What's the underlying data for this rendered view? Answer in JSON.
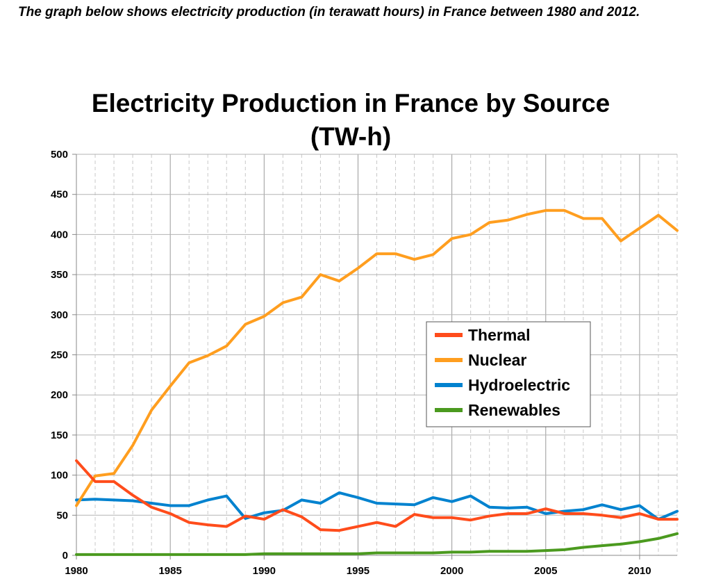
{
  "intro": "The graph below shows electricity production (in terawatt hours) in France between 1980 and 2012.",
  "chart_data": {
    "type": "line",
    "title": "Electricity Production in France by Source",
    "subtitle": "(TW-h)",
    "x": [
      1980,
      1981,
      1982,
      1983,
      1984,
      1985,
      1986,
      1987,
      1988,
      1989,
      1990,
      1991,
      1992,
      1993,
      1994,
      1995,
      1996,
      1997,
      1998,
      1999,
      2000,
      2001,
      2002,
      2003,
      2004,
      2005,
      2006,
      2007,
      2008,
      2009,
      2010,
      2011,
      2012
    ],
    "x_ticks": [
      "1980",
      "1985",
      "1990",
      "1995",
      "2000",
      "2005",
      "2010"
    ],
    "y_ticks": [
      "0",
      "50",
      "100",
      "150",
      "200",
      "250",
      "300",
      "350",
      "400",
      "450",
      "500"
    ],
    "xlim": [
      1980,
      2012
    ],
    "ylim": [
      0,
      500
    ],
    "grid": true,
    "legend_position": "center-right",
    "series": [
      {
        "name": "Thermal",
        "color": "#ff4c1b",
        "values": [
          118,
          92,
          92,
          75,
          60,
          52,
          41,
          38,
          36,
          49,
          45,
          57,
          48,
          32,
          31,
          36,
          41,
          36,
          51,
          47,
          47,
          44,
          49,
          52,
          52,
          58,
          52,
          52,
          50,
          47,
          52,
          45,
          45
        ]
      },
      {
        "name": "Nuclear",
        "color": "#ff9e1f",
        "values": [
          62,
          99,
          102,
          137,
          181,
          211,
          240,
          249,
          261,
          288,
          298,
          315,
          322,
          350,
          342,
          358,
          376,
          376,
          369,
          375,
          395,
          400,
          415,
          418,
          425,
          430,
          430,
          420,
          420,
          392,
          408,
          424,
          405
        ]
      },
      {
        "name": "Hydroelectric",
        "color": "#0082cf",
        "values": [
          69,
          70,
          69,
          68,
          65,
          62,
          62,
          69,
          74,
          46,
          53,
          56,
          69,
          65,
          78,
          72,
          65,
          64,
          63,
          72,
          67,
          74,
          60,
          59,
          60,
          52,
          55,
          57,
          63,
          57,
          62,
          45,
          55
        ]
      },
      {
        "name": "Renewables",
        "color": "#4b9a1f",
        "values": [
          1,
          1,
          1,
          1,
          1,
          1,
          1,
          1,
          1,
          1,
          2,
          2,
          2,
          2,
          2,
          2,
          3,
          3,
          3,
          3,
          4,
          4,
          5,
          5,
          5,
          6,
          7,
          10,
          12,
          14,
          17,
          21,
          27
        ]
      }
    ]
  }
}
